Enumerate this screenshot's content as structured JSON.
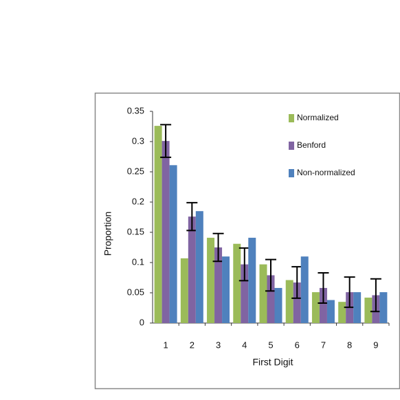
{
  "chart_data": {
    "type": "bar",
    "categories": [
      "1",
      "2",
      "3",
      "4",
      "5",
      "6",
      "7",
      "8",
      "9"
    ],
    "series": [
      {
        "name": "Normalized",
        "color": "#9bbb59",
        "values": [
          0.326,
          0.107,
          0.141,
          0.131,
          0.097,
          0.071,
          0.051,
          0.035,
          0.042
        ]
      },
      {
        "name": "Benford",
        "color": "#8064a2",
        "values": [
          0.301,
          0.176,
          0.125,
          0.097,
          0.079,
          0.067,
          0.058,
          0.051,
          0.046
        ],
        "errors": [
          0.027,
          0.023,
          0.023,
          0.027,
          0.026,
          0.026,
          0.025,
          0.025,
          0.027
        ]
      },
      {
        "name": "Non-normalized",
        "color": "#4f81bd",
        "values": [
          0.261,
          0.185,
          0.11,
          0.141,
          0.058,
          0.11,
          0.038,
          0.051,
          0.051
        ]
      }
    ],
    "x_label": "First Digit",
    "y_label": "Proportion",
    "ylim": [
      0,
      0.35
    ],
    "yticks": [
      0,
      0.05,
      0.1,
      0.15,
      0.2,
      0.25,
      0.3,
      0.35
    ],
    "legend": "upper right"
  }
}
